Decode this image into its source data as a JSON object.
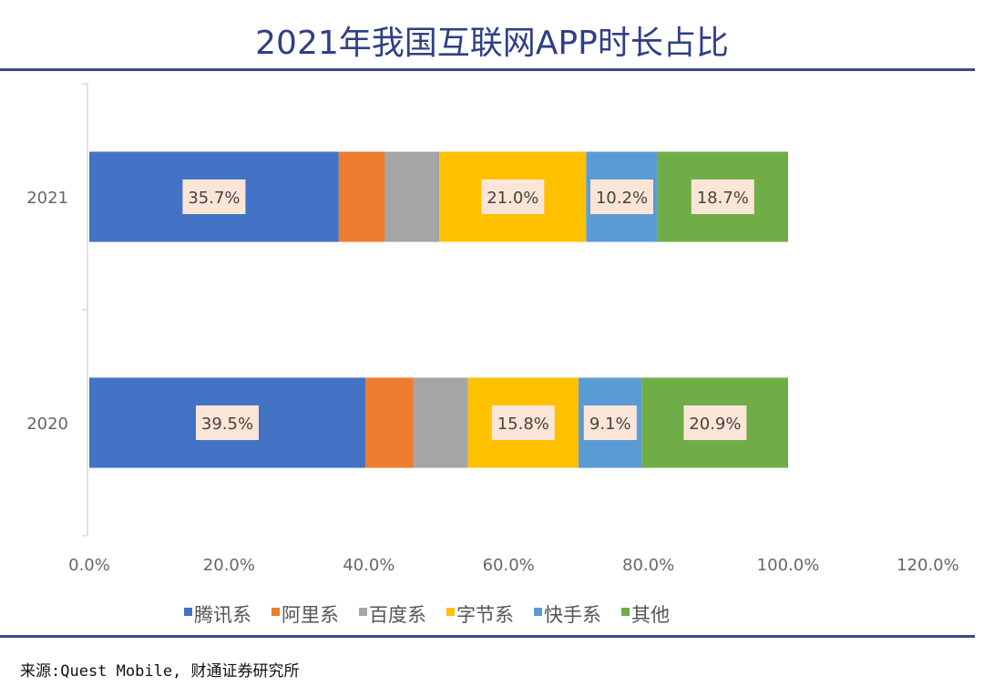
{
  "chart_data": {
    "type": "bar",
    "orientation": "horizontal",
    "stacked": true,
    "title": "2021年我国互联网APP时长占比",
    "categories": [
      "2021",
      "2020"
    ],
    "series": [
      {
        "name": "腾讯系",
        "color": "#4472c4",
        "values": [
          35.7,
          39.5
        ],
        "labels": [
          "35.7%",
          "39.5%"
        ]
      },
      {
        "name": "阿里系",
        "color": "#ed7d31",
        "values": [
          6.6,
          6.9
        ],
        "labels": [
          null,
          null
        ]
      },
      {
        "name": "百度系",
        "color": "#a5a5a5",
        "values": [
          7.8,
          7.8
        ],
        "labels": [
          null,
          null
        ]
      },
      {
        "name": "字节系",
        "color": "#ffc000",
        "values": [
          21.0,
          15.8
        ],
        "labels": [
          "21.0%",
          "15.8%"
        ]
      },
      {
        "name": "快手系",
        "color": "#5b9bd5",
        "values": [
          10.2,
          9.1
        ],
        "labels": [
          "10.2%",
          "9.1%"
        ]
      },
      {
        "name": "其他",
        "color": "#70ad47",
        "values": [
          18.7,
          20.9
        ],
        "labels": [
          "18.7%",
          "20.9%"
        ]
      }
    ],
    "xlim": [
      0,
      120
    ],
    "xticks": [
      "0.0%",
      "20.0%",
      "40.0%",
      "60.0%",
      "80.0%",
      "100.0%",
      "120.0%"
    ],
    "grid": false,
    "legend": "bottom",
    "label_background": "#fbe5d6"
  },
  "source": "来源:Quest Mobile, 财通证券研究所",
  "accent": "#2f3f85"
}
